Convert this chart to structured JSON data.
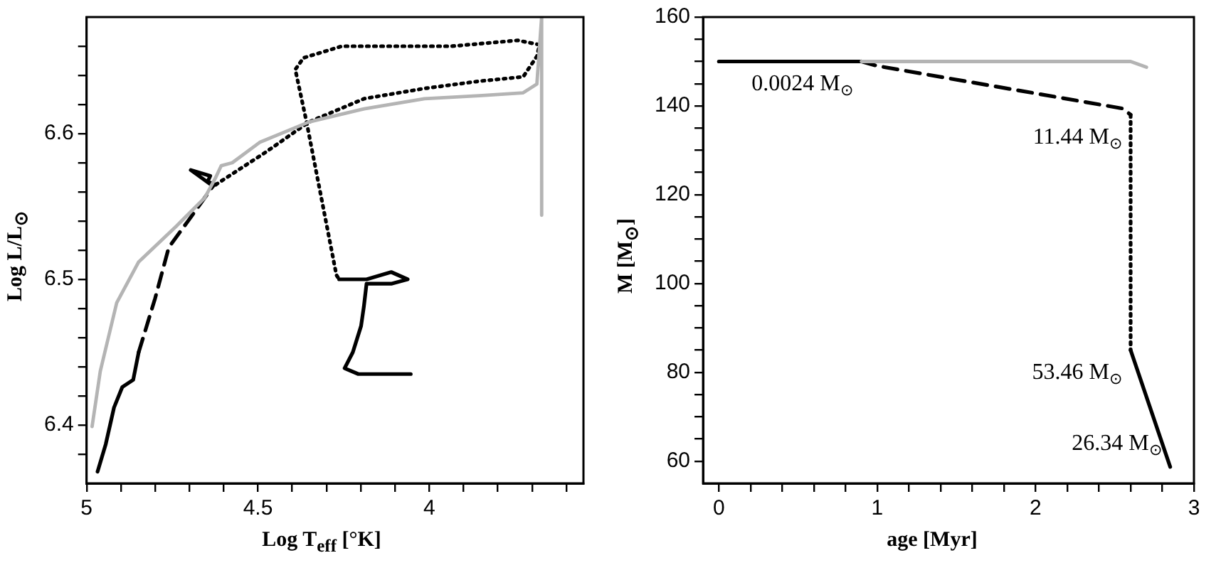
{
  "chart_data": [
    {
      "type": "line",
      "xlabel": "Log  T$_{eff}$  [°K]",
      "ylabel": "Log  L/L$_{⊙}$",
      "xlim": [
        5.0,
        3.55
      ],
      "ylim": [
        6.36,
        6.68
      ],
      "xticks": [
        {
          "value": 3.6,
          "label": null
        },
        {
          "value": 3.7,
          "label": null
        },
        {
          "value": 3.8,
          "label": null
        },
        {
          "value": 3.9,
          "label": null
        },
        4,
        {
          "value": 4.1,
          "label": null
        },
        {
          "value": 4.2,
          "label": null
        },
        {
          "value": 4.3,
          "label": null
        },
        {
          "value": 4.4,
          "label": null
        },
        4.5,
        {
          "value": 4.6,
          "label": null
        },
        {
          "value": 4.7,
          "label": null
        },
        {
          "value": 4.8,
          "label": null
        },
        {
          "value": 4.9,
          "label": null
        },
        5
      ],
      "yticks": [
        {
          "value": 6.38,
          "label": null
        },
        6.4,
        {
          "value": 6.42,
          "label": null
        },
        {
          "value": 6.44,
          "label": null
        },
        {
          "value": 6.46,
          "label": null
        },
        {
          "value": 6.48,
          "label": null
        },
        6.5,
        {
          "value": 6.52,
          "label": null
        },
        {
          "value": 6.54,
          "label": null
        },
        {
          "value": 6.56,
          "label": null
        },
        {
          "value": 6.58,
          "label": null
        },
        6.6,
        {
          "value": 6.62,
          "label": null
        },
        {
          "value": 6.64,
          "label": null
        },
        {
          "value": 6.66,
          "label": null
        }
      ],
      "grid": false,
      "legend": false,
      "marker": "none",
      "series": [
        {
          "color": "#b4b4b4",
          "line_style": "solid",
          "x": [
            4.984,
            4.96,
            4.912,
            4.848,
            4.736,
            4.655,
            4.623,
            4.607,
            4.575,
            4.495,
            4.351,
            4.19,
            4.014,
            3.854,
            3.726,
            3.686,
            3.672,
            3.672
          ],
          "values": [
            6.399,
            6.437,
            6.484,
            6.512,
            6.537,
            6.556,
            6.57,
            6.578,
            6.58,
            6.594,
            6.608,
            6.617,
            6.624,
            6.626,
            6.628,
            6.634,
            6.68,
            6.544
          ]
        },
        {
          "color": "#000000",
          "line_style": "solid",
          "x": [
            4.968,
            4.944,
            4.92,
            4.896,
            4.864,
            4.848
          ],
          "values": [
            6.368,
            6.387,
            6.412,
            6.426,
            6.431,
            6.45
          ]
        },
        {
          "color": "#000000",
          "line_style": "dashed",
          "x": [
            4.848,
            4.8,
            4.76,
            4.704,
            4.631
          ],
          "values": [
            6.45,
            6.487,
            6.522,
            6.54,
            6.564
          ]
        },
        {
          "color": "#000000",
          "line_style": "solid",
          "x": [
            4.631,
            4.696,
            4.639,
            4.647,
            4.623
          ],
          "values": [
            6.564,
            6.575,
            6.571,
            6.567,
            6.565
          ]
        },
        {
          "color": "#000000",
          "line_style": "dotted",
          "x": [
            4.623,
            4.479,
            4.351,
            4.19,
            4.014,
            3.854,
            3.726,
            3.686,
            3.678,
            3.742,
            3.934,
            4.255,
            4.367,
            4.391,
            4.359,
            4.271,
            4.263
          ],
          "values": [
            6.565,
            6.587,
            6.608,
            6.624,
            6.631,
            6.636,
            6.639,
            6.653,
            6.661,
            6.664,
            6.66,
            6.66,
            6.652,
            6.644,
            6.609,
            6.503,
            6.5
          ]
        },
        {
          "color": "#000000",
          "line_style": "solid",
          "x": [
            4.263,
            4.183,
            4.111,
            4.063,
            4.111,
            4.183,
            4.191,
            4.199,
            4.223,
            4.247,
            4.207,
            4.054
          ],
          "values": [
            6.5,
            6.5,
            6.505,
            6.5,
            6.497,
            6.497,
            6.481,
            6.468,
            6.45,
            6.439,
            6.435,
            6.435
          ]
        }
      ]
    },
    {
      "type": "line",
      "xlabel": "age [Myr]",
      "ylabel": "M [M$_{⊙}$]",
      "xlim": [
        -0.1,
        3.0
      ],
      "ylim": [
        55,
        160
      ],
      "xticks": [
        0,
        {
          "value": 0.2,
          "label": null
        },
        {
          "value": 0.4,
          "label": null
        },
        {
          "value": 0.6,
          "label": null
        },
        {
          "value": 0.8,
          "label": null
        },
        1,
        {
          "value": 1.2,
          "label": null
        },
        {
          "value": 1.4,
          "label": null
        },
        {
          "value": 1.6,
          "label": null
        },
        {
          "value": 1.8,
          "label": null
        },
        2,
        {
          "value": 2.2,
          "label": null
        },
        {
          "value": 2.4,
          "label": null
        },
        {
          "value": 2.6,
          "label": null
        },
        {
          "value": 2.8,
          "label": null
        },
        3
      ],
      "yticks": [
        60,
        {
          "value": 65,
          "label": null
        },
        {
          "value": 70,
          "label": null
        },
        {
          "value": 75,
          "label": null
        },
        80,
        {
          "value": 85,
          "label": null
        },
        {
          "value": 90,
          "label": null
        },
        {
          "value": 95,
          "label": null
        },
        100,
        {
          "value": 105,
          "label": null
        },
        {
          "value": 110,
          "label": null
        },
        {
          "value": 115,
          "label": null
        },
        120,
        {
          "value": 125,
          "label": null
        },
        {
          "value": 130,
          "label": null
        },
        {
          "value": 135,
          "label": null
        },
        140,
        {
          "value": 145,
          "label": null
        },
        {
          "value": 150,
          "label": null
        },
        {
          "value": 155,
          "label": null
        },
        160
      ],
      "grid": false,
      "legend": false,
      "marker": "none",
      "annotations": [
        {
          "text": "0.0024 M$_{⊙}$",
          "x": 0.9,
          "y": 150
        },
        {
          "text": "11.44 M$_{⊙}$",
          "x": 2.6,
          "y": 138
        },
        {
          "text": "53.46 M$_{⊙}$",
          "x": 2.6,
          "y": 85
        },
        {
          "text": "26.34 M$_{⊙}$",
          "x": 2.85,
          "y": 58.7
        }
      ],
      "series": [
        {
          "color": "#b4b4b4",
          "line_style": "solid",
          "x": [
            0.9,
            1,
            2,
            2.6,
            2.7
          ],
          "values": [
            150,
            150,
            150,
            150,
            148.7
          ]
        },
        {
          "color": "#000000",
          "line_style": "solid",
          "x": [
            0,
            0.9
          ],
          "values": [
            150,
            150
          ]
        },
        {
          "color": "#000000",
          "line_style": "dashed",
          "x": [
            0.9,
            1.0,
            2.55,
            2.6
          ],
          "values": [
            150,
            149,
            139.4,
            138
          ]
        },
        {
          "color": "#000000",
          "line_style": "dotted",
          "x": [
            2.6,
            2.6
          ],
          "values": [
            138,
            85
          ]
        },
        {
          "color": "#000000",
          "line_style": "solid",
          "x": [
            2.6,
            2.85
          ],
          "values": [
            85,
            58.7
          ]
        }
      ]
    }
  ]
}
